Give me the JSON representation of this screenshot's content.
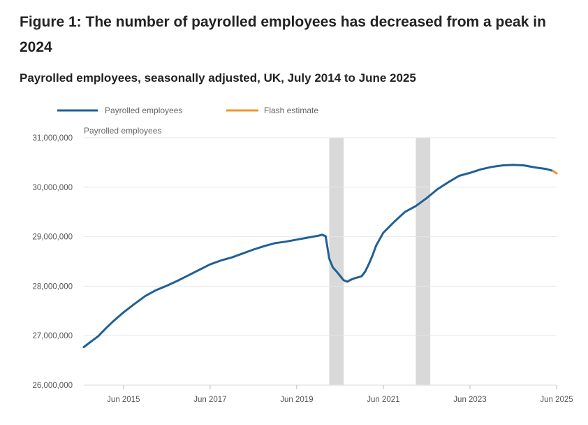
{
  "figure": {
    "title": "Figure 1: The number of payrolled employees has decreased from a peak in 2024",
    "subtitle": "Payrolled employees, seasonally adjusted, UK, July 2014 to June 2025"
  },
  "chart_data": {
    "type": "line",
    "title": "Payrolled employees, seasonally adjusted, UK, July 2014 to June 2025",
    "ylabel": "Payrolled employees",
    "xlabel": "",
    "ylim": [
      26000000,
      31000000
    ],
    "xlim": [
      "2014-07",
      "2025-06"
    ],
    "yticks": [
      26000000,
      27000000,
      28000000,
      29000000,
      30000000,
      31000000
    ],
    "ytick_labels": [
      "26,000,000",
      "27,000,000",
      "28,000,000",
      "29,000,000",
      "30,000,000",
      "31,000,000"
    ],
    "xticks": [
      "2015-06",
      "2017-06",
      "2019-06",
      "2021-06",
      "2023-06",
      "2025-06"
    ],
    "xtick_labels": [
      "Jun 2015",
      "Jun 2017",
      "Jun 2019",
      "Jun 2021",
      "Jun 2023",
      "Jun 2025"
    ],
    "grid": true,
    "legend_position": "top-left",
    "colors": {
      "payrolled": "#206095",
      "flash": "#f39431",
      "shade": "#d9d9d9",
      "grid": "#e6e6e6"
    },
    "shaded_periods": [
      {
        "start": "2020-03",
        "end": "2020-07"
      },
      {
        "start": "2022-03",
        "end": "2022-07"
      }
    ],
    "series": [
      {
        "name": "Payrolled employees",
        "x": [
          "2014-07",
          "2014-09",
          "2014-11",
          "2015-01",
          "2015-03",
          "2015-06",
          "2015-09",
          "2015-12",
          "2016-03",
          "2016-06",
          "2016-09",
          "2016-12",
          "2017-03",
          "2017-06",
          "2017-09",
          "2017-12",
          "2018-03",
          "2018-06",
          "2018-09",
          "2018-12",
          "2019-03",
          "2019-06",
          "2019-09",
          "2019-12",
          "2020-01",
          "2020-02",
          "2020-03",
          "2020-04",
          "2020-05",
          "2020-06",
          "2020-07",
          "2020-08",
          "2020-09",
          "2020-10",
          "2020-11",
          "2020-12",
          "2021-01",
          "2021-02",
          "2021-03",
          "2021-04",
          "2021-06",
          "2021-09",
          "2021-12",
          "2022-03",
          "2022-06",
          "2022-09",
          "2022-12",
          "2023-03",
          "2023-06",
          "2023-09",
          "2023-12",
          "2024-03",
          "2024-06",
          "2024-09",
          "2024-12",
          "2025-03",
          "2025-05"
        ],
        "values": [
          26770000,
          26880000,
          26990000,
          27140000,
          27280000,
          27470000,
          27640000,
          27800000,
          27920000,
          28010000,
          28110000,
          28220000,
          28330000,
          28440000,
          28520000,
          28580000,
          28660000,
          28740000,
          28810000,
          28870000,
          28900000,
          28940000,
          28980000,
          29020000,
          29040000,
          29010000,
          28560000,
          28380000,
          28300000,
          28210000,
          28120000,
          28090000,
          28130000,
          28160000,
          28180000,
          28200000,
          28300000,
          28450000,
          28620000,
          28820000,
          29080000,
          29300000,
          29500000,
          29620000,
          29780000,
          29960000,
          30100000,
          30230000,
          30290000,
          30360000,
          30410000,
          30440000,
          30450000,
          30440000,
          30400000,
          30370000,
          30330000
        ]
      },
      {
        "name": "Flash estimate",
        "x": [
          "2025-05",
          "2025-06"
        ],
        "values": [
          30330000,
          30280000
        ]
      }
    ]
  }
}
